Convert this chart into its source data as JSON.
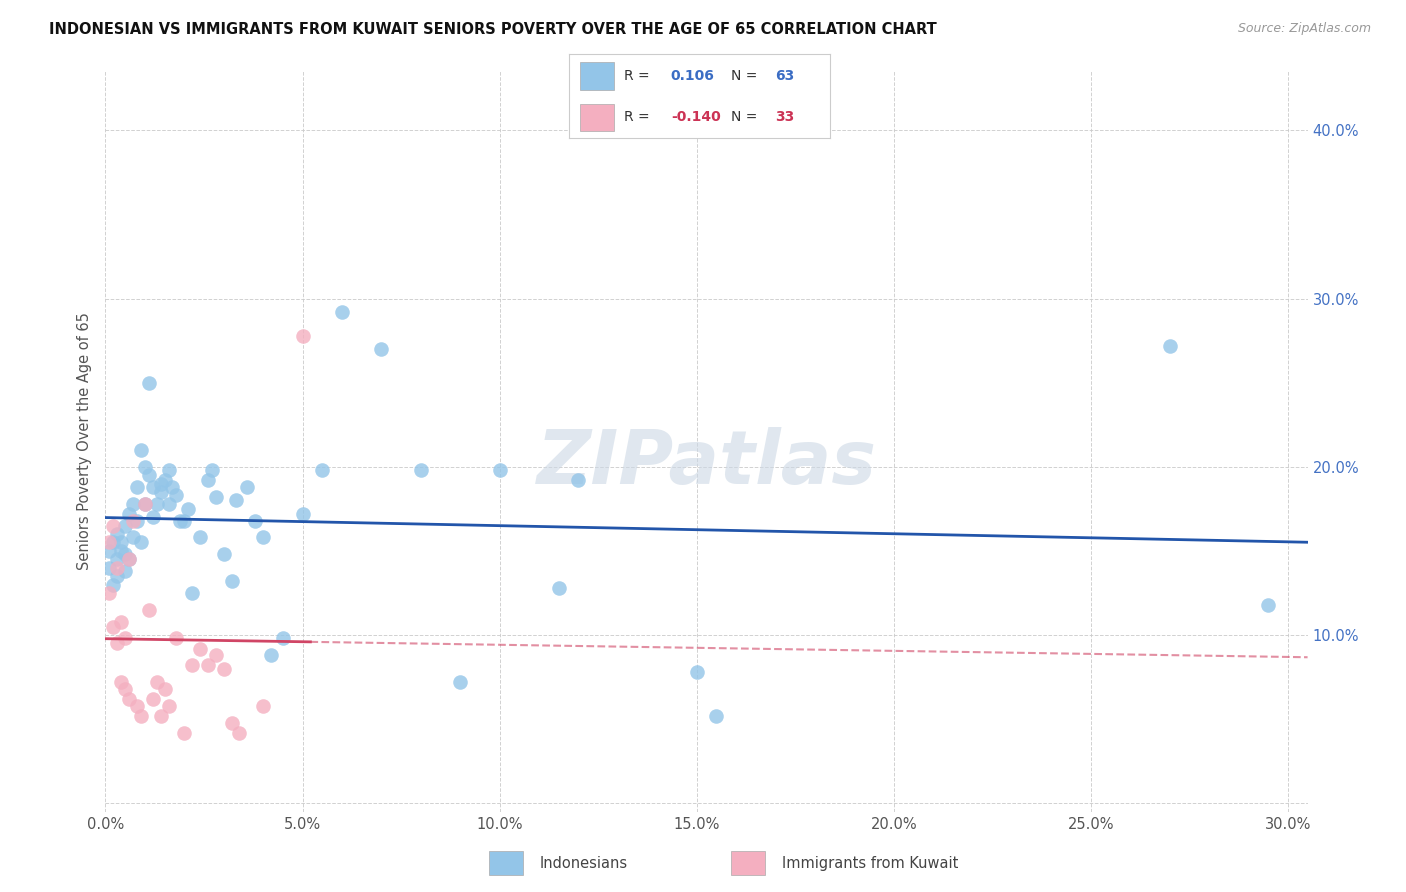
{
  "title": "INDONESIAN VS IMMIGRANTS FROM KUWAIT SENIORS POVERTY OVER THE AGE OF 65 CORRELATION CHART",
  "source": "Source: ZipAtlas.com",
  "ylabel": "Seniors Poverty Over the Age of 65",
  "xlim": [
    0.0,
    0.305
  ],
  "ylim": [
    -0.005,
    0.435
  ],
  "xticks": [
    0.0,
    0.05,
    0.1,
    0.15,
    0.2,
    0.25,
    0.3
  ],
  "yticks": [
    0.0,
    0.1,
    0.2,
    0.3,
    0.4
  ],
  "xtick_labels": [
    "0.0%",
    "5.0%",
    "10.0%",
    "15.0%",
    "20.0%",
    "25.0%",
    "30.0%"
  ],
  "ytick_labels": [
    "",
    "10.0%",
    "20.0%",
    "30.0%",
    "40.0%"
  ],
  "blue_scatter_color": "#93c5e8",
  "pink_scatter_color": "#f4afc0",
  "line_blue_color": "#2255aa",
  "line_pink_color": "#d04565",
  "legend_label_blue": "Indonesians",
  "legend_label_pink": "Immigrants from Kuwait",
  "watermark": "ZIPatlas",
  "indonesian_x": [
    0.001,
    0.001,
    0.002,
    0.002,
    0.003,
    0.003,
    0.003,
    0.004,
    0.004,
    0.005,
    0.005,
    0.005,
    0.006,
    0.006,
    0.007,
    0.007,
    0.008,
    0.008,
    0.009,
    0.009,
    0.01,
    0.01,
    0.011,
    0.011,
    0.012,
    0.012,
    0.013,
    0.014,
    0.014,
    0.015,
    0.016,
    0.016,
    0.017,
    0.018,
    0.019,
    0.02,
    0.021,
    0.022,
    0.024,
    0.026,
    0.027,
    0.028,
    0.03,
    0.032,
    0.033,
    0.036,
    0.038,
    0.04,
    0.042,
    0.045,
    0.05,
    0.055,
    0.06,
    0.07,
    0.08,
    0.09,
    0.1,
    0.115,
    0.12,
    0.15,
    0.155,
    0.27,
    0.295
  ],
  "indonesian_y": [
    0.15,
    0.14,
    0.155,
    0.13,
    0.16,
    0.135,
    0.145,
    0.155,
    0.15,
    0.165,
    0.148,
    0.138,
    0.172,
    0.145,
    0.178,
    0.158,
    0.188,
    0.168,
    0.21,
    0.155,
    0.2,
    0.178,
    0.25,
    0.195,
    0.17,
    0.188,
    0.178,
    0.19,
    0.185,
    0.192,
    0.198,
    0.178,
    0.188,
    0.183,
    0.168,
    0.168,
    0.175,
    0.125,
    0.158,
    0.192,
    0.198,
    0.182,
    0.148,
    0.132,
    0.18,
    0.188,
    0.168,
    0.158,
    0.088,
    0.098,
    0.172,
    0.198,
    0.292,
    0.27,
    0.198,
    0.072,
    0.198,
    0.128,
    0.192,
    0.078,
    0.052,
    0.272,
    0.118
  ],
  "kuwait_x": [
    0.001,
    0.001,
    0.002,
    0.002,
    0.003,
    0.003,
    0.004,
    0.004,
    0.005,
    0.005,
    0.006,
    0.006,
    0.007,
    0.008,
    0.009,
    0.01,
    0.011,
    0.012,
    0.013,
    0.014,
    0.015,
    0.016,
    0.018,
    0.02,
    0.022,
    0.024,
    0.026,
    0.028,
    0.03,
    0.032,
    0.034,
    0.04,
    0.05
  ],
  "kuwait_y": [
    0.155,
    0.125,
    0.165,
    0.105,
    0.14,
    0.095,
    0.108,
    0.072,
    0.098,
    0.068,
    0.145,
    0.062,
    0.168,
    0.058,
    0.052,
    0.178,
    0.115,
    0.062,
    0.072,
    0.052,
    0.068,
    0.058,
    0.098,
    0.042,
    0.082,
    0.092,
    0.082,
    0.088,
    0.08,
    0.048,
    0.042,
    0.058,
    0.278
  ]
}
